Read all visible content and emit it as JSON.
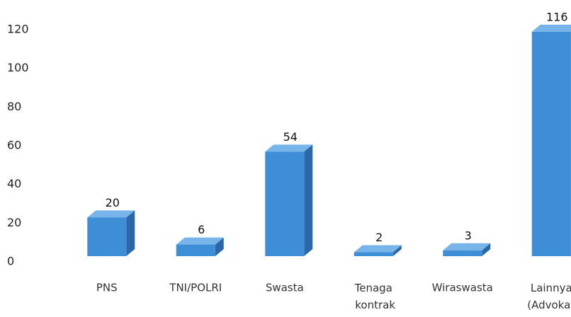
{
  "chart_data": {
    "type": "bar",
    "categories": [
      "PNS",
      "TNI/POLRI",
      "Swasta",
      "Tenaga kontrak",
      "Wiraswasta",
      "Lainnya (Advokat)"
    ],
    "values": [
      20,
      6,
      54,
      2,
      3,
      116
    ],
    "color": "#3d8ed6",
    "ylim": [
      0,
      120
    ],
    "yticks": [
      0,
      20,
      40,
      60,
      80,
      100,
      120
    ],
    "grid": false
  }
}
